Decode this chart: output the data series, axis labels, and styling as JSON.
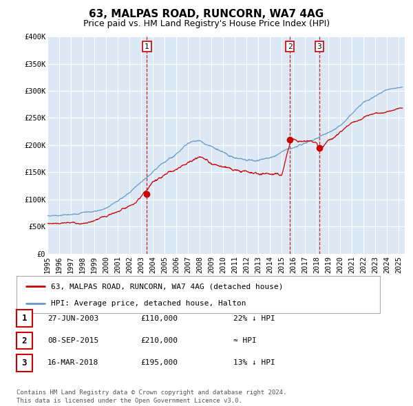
{
  "title": "63, MALPAS ROAD, RUNCORN, WA7 4AG",
  "subtitle": "Price paid vs. HM Land Registry's House Price Index (HPI)",
  "ylim": [
    0,
    400000
  ],
  "yticks": [
    0,
    50000,
    100000,
    150000,
    200000,
    250000,
    300000,
    350000,
    400000
  ],
  "ytick_labels": [
    "£0",
    "£50K",
    "£100K",
    "£150K",
    "£200K",
    "£250K",
    "£300K",
    "£350K",
    "£400K"
  ],
  "xlim_start": 1995.0,
  "xlim_end": 2025.5,
  "plot_bg_color": "#dce9f5",
  "grid_color": "#c8d8ec",
  "red_line_color": "#cc0000",
  "blue_line_color": "#6699cc",
  "marker_color": "#cc0000",
  "dashed_line_color": "#cc0000",
  "transaction_dates": [
    2003.49,
    2015.69,
    2018.21
  ],
  "transaction_prices": [
    110000,
    210000,
    195000
  ],
  "transaction_labels": [
    "1",
    "2",
    "3"
  ],
  "legend_label_red": "63, MALPAS ROAD, RUNCORN, WA7 4AG (detached house)",
  "legend_label_blue": "HPI: Average price, detached house, Halton",
  "table_rows": [
    {
      "num": "1",
      "date": "27-JUN-2003",
      "price": "£110,000",
      "vs_hpi": "22% ↓ HPI"
    },
    {
      "num": "2",
      "date": "08-SEP-2015",
      "price": "£210,000",
      "vs_hpi": "≈ HPI"
    },
    {
      "num": "3",
      "date": "16-MAR-2018",
      "price": "£195,000",
      "vs_hpi": "13% ↓ HPI"
    }
  ],
  "footer": "Contains HM Land Registry data © Crown copyright and database right 2024.\nThis data is licensed under the Open Government Licence v3.0.",
  "title_fontsize": 11,
  "subtitle_fontsize": 9,
  "tick_fontsize": 7.5,
  "legend_fontsize": 8,
  "table_fontsize": 8,
  "footer_fontsize": 6.5
}
